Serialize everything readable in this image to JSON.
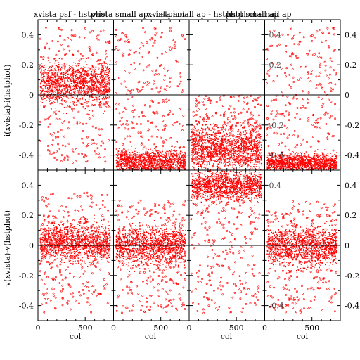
{
  "figure": {
    "titles": [
      "xvista psf - hstphot",
      "xvista small ap - hstphot",
      "xvista small ap - hstphot small ap",
      "hstphot small ap"
    ],
    "ylabels": [
      "i(xvista)-i(hstphot)",
      "v(xvista)-v(hstphot)"
    ],
    "xlabel": "col",
    "xticklabels": [
      "0",
      "500",
      "0",
      "500",
      "0",
      "500",
      "0",
      "500"
    ],
    "yticklabels_top_left": [
      "0.4",
      "0.2",
      "0",
      "-0.2",
      "-0.4"
    ],
    "yticklabels_bottom_left": [
      "0.4",
      "0.2",
      "0",
      "-0.2",
      "-0.4"
    ],
    "yticklabels_top_right": [
      "0.4",
      "0.2",
      "0",
      "-0.2",
      "-0.4"
    ],
    "yticklabels_bottom_right": [
      "0.4",
      "0.2",
      "0",
      "-0.2",
      "-0.4"
    ],
    "inner_tick_labels_top_right_panel": [
      "0.4",
      "0.2",
      "-0.2",
      "-0.4"
    ],
    "inner_tick_labels_bottom_right_panel": [
      "0.4",
      "-0.4"
    ],
    "colors": {
      "points": "#ff0000",
      "axes": "#000000",
      "background": "#ffffff"
    }
  },
  "chart_data": [
    {
      "type": "scatter",
      "row": "top",
      "col": 1,
      "xlim": [
        0,
        800
      ],
      "ylim": [
        -0.5,
        0.5
      ],
      "ylabel": "i(xvista)-i(hstphot)",
      "dense_band": {
        "center": 0.08,
        "halfwidth": 0.14
      },
      "sparse_range": [
        -0.45,
        0.45
      ],
      "zero_line": true
    },
    {
      "type": "scatter",
      "row": "top",
      "col": 2,
      "xlim": [
        0,
        800
      ],
      "ylim": [
        -0.5,
        0.5
      ],
      "dense_band": {
        "center": -0.45,
        "halfwidth": 0.08
      },
      "sparse_range": [
        -0.45,
        0.45
      ],
      "zero_line": true
    },
    {
      "type": "scatter",
      "row": "top",
      "col": 3,
      "xlim": [
        0,
        800
      ],
      "ylim": [
        -0.5,
        0.5
      ],
      "dense_band": {
        "center": -0.35,
        "halfwidth": 0.14
      },
      "sparse_range": [
        -0.45,
        0.0
      ],
      "zero_line": true
    },
    {
      "type": "scatter",
      "row": "top",
      "col": 4,
      "xlim": [
        0,
        800
      ],
      "ylim": [
        -0.5,
        0.5
      ],
      "dense_band": {
        "center": -0.45,
        "halfwidth": 0.06
      },
      "sparse_range": [
        -0.45,
        0.45
      ],
      "zero_line": true
    },
    {
      "type": "scatter",
      "row": "bottom",
      "col": 1,
      "xlim": [
        0,
        800
      ],
      "ylim": [
        -0.5,
        0.5
      ],
      "ylabel": "v(xvista)-v(hstphot)",
      "dense_band": {
        "center": 0.02,
        "halfwidth": 0.12
      },
      "sparse_range": [
        -0.45,
        0.35
      ],
      "zero_line": true
    },
    {
      "type": "scatter",
      "row": "bottom",
      "col": 2,
      "xlim": [
        0,
        800
      ],
      "ylim": [
        -0.5,
        0.5
      ],
      "dense_band": {
        "center": 0.0,
        "halfwidth": 0.12
      },
      "sparse_range": [
        -0.45,
        0.3
      ],
      "zero_line": true
    },
    {
      "type": "scatter",
      "row": "bottom",
      "col": 3,
      "xlim": [
        0,
        800
      ],
      "ylim": [
        -0.5,
        0.5
      ],
      "dense_band": {
        "center": 0.4,
        "halfwidth": 0.1
      },
      "sparse_range": [
        -0.45,
        0.45
      ],
      "zero_line": true
    },
    {
      "type": "scatter",
      "row": "bottom",
      "col": 4,
      "xlim": [
        0,
        800
      ],
      "ylim": [
        -0.5,
        0.5
      ],
      "dense_band": {
        "center": 0.0,
        "halfwidth": 0.12
      },
      "sparse_range": [
        -0.45,
        0.3
      ],
      "zero_line": true
    }
  ]
}
